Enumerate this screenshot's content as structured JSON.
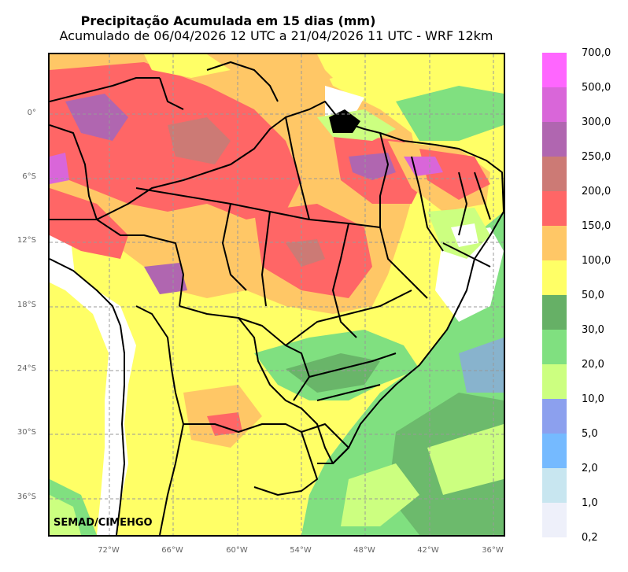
{
  "title": "Precipitação Acumulada em 15 dias (mm)",
  "subtitle": "Acumulado de 06/04/2026 12 UTC a 21/04/2026 11 UTC - WRF 12km",
  "credit": "SEMAD/CIMEHGO",
  "latitude_labels": [
    "0°",
    "6°S",
    "12°S",
    "18°S",
    "24°S",
    "30°S",
    "36°S"
  ],
  "longitude_labels": [
    "72°W",
    "66°W",
    "60°W",
    "54°W",
    "48°W",
    "42°W",
    "36°W"
  ],
  "legend": [
    {
      "label": "700,0",
      "color": "#ff66ff"
    },
    {
      "label": "500,0",
      "color": "#d966d9"
    },
    {
      "label": "300,0",
      "color": "#b066b0"
    },
    {
      "label": "250,0",
      "color": "#cc7a75"
    },
    {
      "label": "200,0",
      "color": "#ff6666"
    },
    {
      "label": "150,0",
      "color": "#ffc766"
    },
    {
      "label": "100,0",
      "color": "#ffff66"
    },
    {
      "label": "50,0",
      "color": "#66b066"
    },
    {
      "label": "30,0",
      "color": "#80e080"
    },
    {
      "label": "20,0",
      "color": "#ccff80"
    },
    {
      "label": "10,0",
      "color": "#8ca0ee"
    },
    {
      "label": "5,0",
      "color": "#75baff"
    },
    {
      "label": "2,0",
      "color": "#c8e6f0"
    },
    {
      "label": "1,0",
      "color": "#eef0fa"
    },
    {
      "label": "0,2",
      "color": ""
    }
  ]
}
